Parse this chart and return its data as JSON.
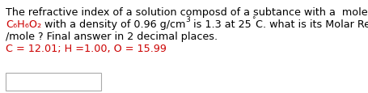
{
  "line1": "The refractive index of a solution composd of a subtance with a  molecular formula of",
  "line3": "/mole ? Final answer in 2 decimal places.",
  "line4": "C = 12.01; H =1.00, O = 15.99",
  "text_color": "#000000",
  "formula_color": "#cc0000",
  "bg_color": "#ffffff",
  "font_size": 9.2,
  "font_size_sup": 6.5,
  "font_family": "DejaVu Sans"
}
